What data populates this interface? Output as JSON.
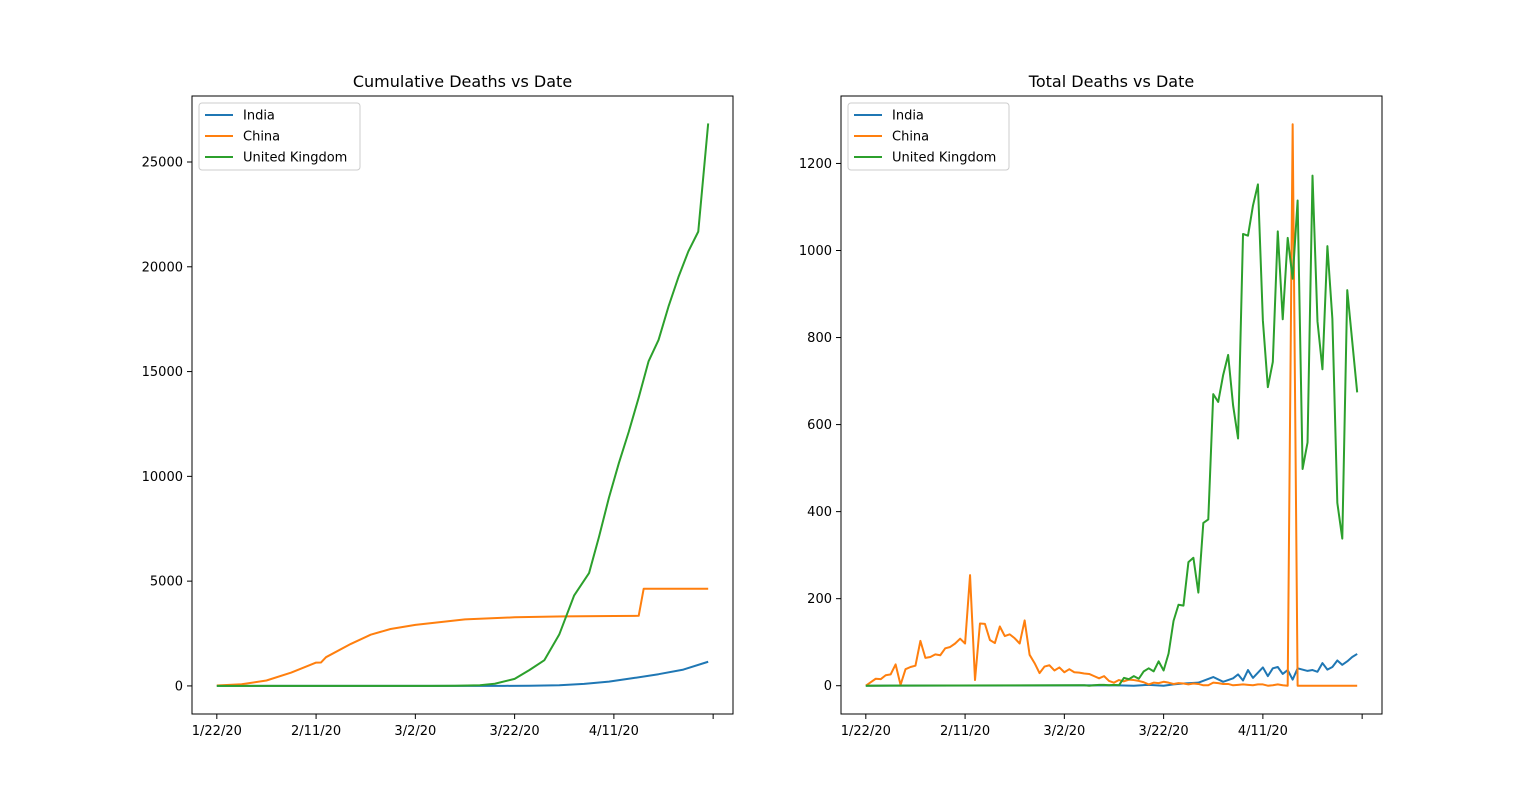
{
  "chart_data": [
    {
      "type": "line",
      "title": "Cumulative Deaths vs Date",
      "xlabel": "",
      "ylabel": "",
      "x_tick_labels": [
        "1/22/20",
        "2/11/20",
        "3/2/20",
        "3/22/20",
        "4/11/20",
        ""
      ],
      "x_start_date": "1/22/20",
      "x_end_date": "4/30/20",
      "xlim": [
        "1/17/20",
        "5/5/20"
      ],
      "ylim": [
        -1340,
        28150
      ],
      "y_ticks": [
        0,
        5000,
        10000,
        15000,
        20000,
        25000
      ],
      "legend_position": "top-left",
      "grid": false,
      "series": [
        {
          "name": "India",
          "color": "#1f77b4",
          "points": [
            [
              "1/22/20",
              0
            ],
            [
              "2/29/20",
              0
            ],
            [
              "3/12/20",
              1
            ],
            [
              "3/20/20",
              4
            ],
            [
              "3/25/20",
              10
            ],
            [
              "3/31/20",
              35
            ],
            [
              "4/5/20",
              99
            ],
            [
              "4/10/20",
              206
            ],
            [
              "4/15/20",
              377
            ],
            [
              "4/20/20",
              559
            ],
            [
              "4/25/20",
              779
            ],
            [
              "4/30/20",
              1154
            ]
          ]
        },
        {
          "name": "China",
          "color": "#ff7f0e",
          "points": [
            [
              "1/22/20",
              17
            ],
            [
              "1/27/20",
              82
            ],
            [
              "2/1/20",
              259
            ],
            [
              "2/6/20",
              638
            ],
            [
              "2/11/20",
              1113
            ],
            [
              "2/12/20",
              1118
            ],
            [
              "2/13/20",
              1371
            ],
            [
              "2/18/20",
              2004
            ],
            [
              "2/22/20",
              2444
            ],
            [
              "2/26/20",
              2715
            ],
            [
              "3/2/20",
              2915
            ],
            [
              "3/12/20",
              3176
            ],
            [
              "3/22/20",
              3274
            ],
            [
              "4/1/20",
              3318
            ],
            [
              "4/11/20",
              3339
            ],
            [
              "4/16/20",
              3346
            ],
            [
              "4/17/20",
              4636
            ],
            [
              "4/30/20",
              4637
            ]
          ]
        },
        {
          "name": "United Kingdom",
          "color": "#2ca02c",
          "points": [
            [
              "1/22/20",
              0
            ],
            [
              "3/5/20",
              1
            ],
            [
              "3/10/20",
              7
            ],
            [
              "3/15/20",
              35
            ],
            [
              "3/18/20",
              104
            ],
            [
              "3/22/20",
              335
            ],
            [
              "3/25/20",
              759
            ],
            [
              "3/28/20",
              1228
            ],
            [
              "3/31/20",
              2457
            ],
            [
              "4/3/20",
              4320
            ],
            [
              "4/6/20",
              5385
            ],
            [
              "4/8/20",
              7111
            ],
            [
              "4/10/20",
              8979
            ],
            [
              "4/12/20",
              10629
            ],
            [
              "4/14/20",
              12129
            ],
            [
              "4/16/20",
              13759
            ],
            [
              "4/18/20",
              15498
            ],
            [
              "4/20/20",
              16509
            ],
            [
              "4/22/20",
              18100
            ],
            [
              "4/24/20",
              19506
            ],
            [
              "4/26/20",
              20732
            ],
            [
              "4/28/20",
              21678
            ],
            [
              "4/30/20",
              26842
            ]
          ]
        }
      ]
    },
    {
      "type": "line",
      "title": "Total Deaths vs Date",
      "xlabel": "",
      "ylabel": "",
      "x_tick_labels": [
        "1/22/20",
        "2/11/20",
        "3/2/20",
        "3/22/20",
        "4/11/20",
        ""
      ],
      "x_start_date": "1/22/20",
      "x_end_date": "4/30/20",
      "xlim": [
        "1/17/20",
        "5/5/20"
      ],
      "ylim": [
        -65,
        1355
      ],
      "y_ticks": [
        0,
        200,
        400,
        600,
        800,
        1000,
        1200
      ],
      "legend_position": "top-left",
      "grid": false,
      "series": [
        {
          "name": "India",
          "color": "#1f77b4",
          "points": [
            [
              "1/22/20",
              0
            ],
            [
              "3/12/20",
              1
            ],
            [
              "3/16/20",
              0
            ],
            [
              "3/19/20",
              2
            ],
            [
              "3/22/20",
              0
            ],
            [
              "3/24/20",
              3
            ],
            [
              "3/26/20",
              5
            ],
            [
              "3/29/20",
              7
            ],
            [
              "4/1/20",
              20
            ],
            [
              "4/3/20",
              9
            ],
            [
              "4/5/20",
              17
            ],
            [
              "4/6/20",
              26
            ],
            [
              "4/7/20",
              12
            ],
            [
              "4/8/20",
              36
            ],
            [
              "4/9/20",
              18
            ],
            [
              "4/11/20",
              42
            ],
            [
              "4/12/20",
              22
            ],
            [
              "4/13/20",
              40
            ],
            [
              "4/14/20",
              43
            ],
            [
              "4/15/20",
              27
            ],
            [
              "4/16/20",
              36
            ],
            [
              "4/17/20",
              14
            ],
            [
              "4/18/20",
              40
            ],
            [
              "4/20/20",
              34
            ],
            [
              "4/21/20",
              36
            ],
            [
              "4/22/20",
              32
            ],
            [
              "4/23/20",
              52
            ],
            [
              "4/24/20",
              37
            ],
            [
              "4/25/20",
              43
            ],
            [
              "4/26/20",
              58
            ],
            [
              "4/27/20",
              48
            ],
            [
              "4/28/20",
              56
            ],
            [
              "4/29/20",
              66
            ],
            [
              "4/30/20",
              73
            ]
          ]
        },
        {
          "name": "China",
          "color": "#ff7f0e",
          "points": [
            [
              "1/22/20",
              0
            ],
            [
              "1/23/20",
              8
            ],
            [
              "1/24/20",
              16
            ],
            [
              "1/25/20",
              15
            ],
            [
              "1/26/20",
              24
            ],
            [
              "1/27/20",
              26
            ],
            [
              "1/28/20",
              49
            ],
            [
              "1/29/20",
              2
            ],
            [
              "1/30/20",
              38
            ],
            [
              "1/31/20",
              43
            ],
            [
              "2/1/20",
              46
            ],
            [
              "2/2/20",
              103
            ],
            [
              "2/3/20",
              64
            ],
            [
              "2/4/20",
              66
            ],
            [
              "2/5/20",
              72
            ],
            [
              "2/6/20",
              70
            ],
            [
              "2/7/20",
              86
            ],
            [
              "2/8/20",
              89
            ],
            [
              "2/9/20",
              97
            ],
            [
              "2/10/20",
              108
            ],
            [
              "2/11/20",
              97
            ],
            [
              "2/12/20",
              254
            ],
            [
              "2/13/20",
              13
            ],
            [
              "2/14/20",
              143
            ],
            [
              "2/15/20",
              142
            ],
            [
              "2/16/20",
              105
            ],
            [
              "2/17/20",
              98
            ],
            [
              "2/18/20",
              136
            ],
            [
              "2/19/20",
              114
            ],
            [
              "2/20/20",
              118
            ],
            [
              "2/21/20",
              109
            ],
            [
              "2/22/20",
              97
            ],
            [
              "2/23/20",
              150
            ],
            [
              "2/24/20",
              71
            ],
            [
              "2/25/20",
              52
            ],
            [
              "2/26/20",
              29
            ],
            [
              "2/27/20",
              44
            ],
            [
              "2/28/20",
              47
            ],
            [
              "2/29/20",
              35
            ],
            [
              "3/1/20",
              42
            ],
            [
              "3/2/20",
              31
            ],
            [
              "3/3/20",
              38
            ],
            [
              "3/4/20",
              31
            ],
            [
              "3/5/20",
              30
            ],
            [
              "3/6/20",
              28
            ],
            [
              "3/7/20",
              27
            ],
            [
              "3/8/20",
              22
            ],
            [
              "3/9/20",
              17
            ],
            [
              "3/10/20",
              22
            ],
            [
              "3/11/20",
              11
            ],
            [
              "3/12/20",
              7
            ],
            [
              "3/13/20",
              13
            ],
            [
              "3/14/20",
              10
            ],
            [
              "3/15/20",
              14
            ],
            [
              "3/16/20",
              13
            ],
            [
              "3/17/20",
              11
            ],
            [
              "3/18/20",
              8
            ],
            [
              "3/19/20",
              3
            ],
            [
              "3/20/20",
              7
            ],
            [
              "3/21/20",
              6
            ],
            [
              "3/22/20",
              9
            ],
            [
              "3/23/20",
              7
            ],
            [
              "3/24/20",
              4
            ],
            [
              "3/25/20",
              6
            ],
            [
              "3/26/20",
              5
            ],
            [
              "3/27/20",
              3
            ],
            [
              "3/28/20",
              5
            ],
            [
              "3/29/20",
              4
            ],
            [
              "3/30/20",
              1
            ],
            [
              "3/31/20",
              1
            ],
            [
              "4/1/20",
              7
            ],
            [
              "4/2/20",
              6
            ],
            [
              "4/3/20",
              4
            ],
            [
              "4/4/20",
              4
            ],
            [
              "4/5/20",
              1
            ],
            [
              "4/6/20",
              2
            ],
            [
              "4/7/20",
              3
            ],
            [
              "4/8/20",
              2
            ],
            [
              "4/9/20",
              1
            ],
            [
              "4/10/20",
              3
            ],
            [
              "4/11/20",
              3
            ],
            [
              "4/12/20",
              0
            ],
            [
              "4/13/20",
              1
            ],
            [
              "4/14/20",
              3
            ],
            [
              "4/15/20",
              1
            ],
            [
              "4/16/20",
              0
            ],
            [
              "4/17/20",
              1290
            ],
            [
              "4/18/20",
              0
            ],
            [
              "4/22/20",
              0
            ],
            [
              "4/30/20",
              0
            ]
          ]
        },
        {
          "name": "United Kingdom",
          "color": "#2ca02c",
          "points": [
            [
              "1/22/20",
              0
            ],
            [
              "3/5/20",
              1
            ],
            [
              "3/6/20",
              1
            ],
            [
              "3/7/20",
              0
            ],
            [
              "3/8/20",
              1
            ],
            [
              "3/9/20",
              2
            ],
            [
              "3/10/20",
              2
            ],
            [
              "3/11/20",
              1
            ],
            [
              "3/12/20",
              2
            ],
            [
              "3/13/20",
              1
            ],
            [
              "3/14/20",
              18
            ],
            [
              "3/15/20",
              15
            ],
            [
              "3/16/20",
              22
            ],
            [
              "3/17/20",
              16
            ],
            [
              "3/18/20",
              33
            ],
            [
              "3/19/20",
              40
            ],
            [
              "3/20/20",
              33
            ],
            [
              "3/21/20",
              56
            ],
            [
              "3/22/20",
              35
            ],
            [
              "3/23/20",
              74
            ],
            [
              "3/24/20",
              149
            ],
            [
              "3/25/20",
              186
            ],
            [
              "3/26/20",
              184
            ],
            [
              "3/27/20",
              284
            ],
            [
              "3/28/20",
              294
            ],
            [
              "3/29/20",
              214
            ],
            [
              "3/30/20",
              374
            ],
            [
              "3/31/20",
              382
            ],
            [
              "4/1/20",
              670
            ],
            [
              "4/2/20",
              652
            ],
            [
              "4/3/20",
              714
            ],
            [
              "4/4/20",
              760
            ],
            [
              "4/5/20",
              644
            ],
            [
              "4/6/20",
              568
            ],
            [
              "4/7/20",
              1038
            ],
            [
              "4/8/20",
              1034
            ],
            [
              "4/9/20",
              1103
            ],
            [
              "4/10/20",
              1152
            ],
            [
              "4/11/20",
              839
            ],
            [
              "4/12/20",
              686
            ],
            [
              "4/13/20",
              744
            ],
            [
              "4/14/20",
              1044
            ],
            [
              "4/15/20",
              842
            ],
            [
              "4/16/20",
              1029
            ],
            [
              "4/17/20",
              935
            ],
            [
              "4/18/20",
              1115
            ],
            [
              "4/19/20",
              498
            ],
            [
              "4/20/20",
              559
            ],
            [
              "4/21/20",
              1172
            ],
            [
              "4/22/20",
              837
            ],
            [
              "4/23/20",
              727
            ],
            [
              "4/24/20",
              1010
            ],
            [
              "4/25/20",
              843
            ],
            [
              "4/26/20",
              420
            ],
            [
              "4/27/20",
              338
            ],
            [
              "4/28/20",
              909
            ],
            [
              "4/30/20",
              674
            ]
          ]
        }
      ]
    }
  ]
}
